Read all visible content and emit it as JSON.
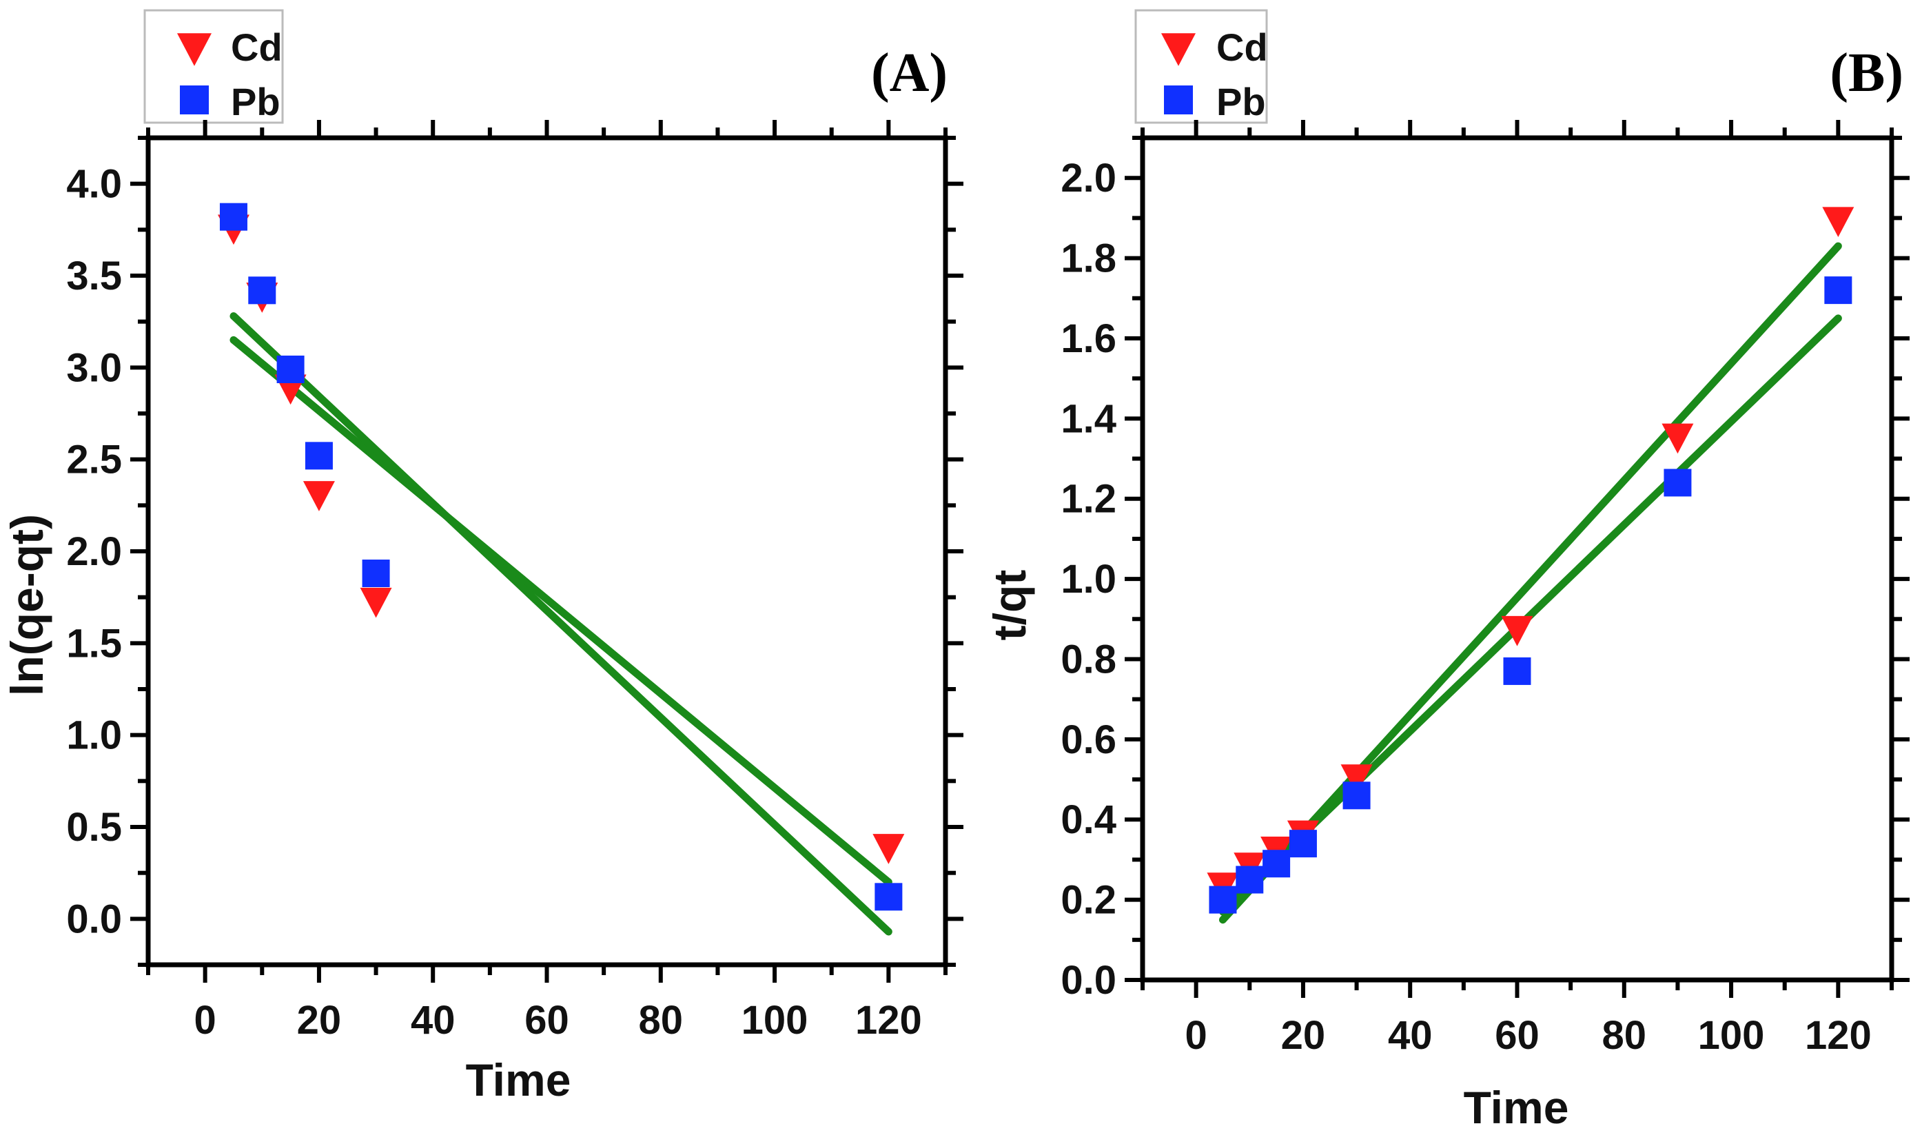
{
  "chart_data": [
    {
      "type": "scatter",
      "panel_label": "(A)",
      "xlabel": "Time",
      "ylabel": "ln(qe-qt)",
      "xlim": [
        -10,
        130
      ],
      "ylim": [
        -0.25,
        4.25
      ],
      "xticks": [
        0,
        20,
        40,
        60,
        80,
        100,
        120
      ],
      "yticks": [
        0.0,
        0.5,
        1.0,
        1.5,
        2.0,
        2.5,
        3.0,
        3.5,
        4.0
      ],
      "xtick_labels": [
        "0",
        "20",
        "40",
        "60",
        "80",
        "100",
        "120"
      ],
      "ytick_labels": [
        "0.0",
        "0.5",
        "1.0",
        "1.5",
        "2.0",
        "2.5",
        "3.0",
        "3.5",
        "4.0"
      ],
      "legend": {
        "position": "top-left-outside",
        "entries": [
          "Cd",
          "Pb"
        ]
      },
      "series": [
        {
          "name": "Cd",
          "marker": "triangle-down",
          "color": "#ff1a1a",
          "x": [
            5,
            10,
            15,
            20,
            30,
            120
          ],
          "y": [
            3.75,
            3.38,
            2.88,
            2.3,
            1.72,
            0.38
          ]
        },
        {
          "name": "Pb",
          "marker": "square",
          "color": "#1030ff",
          "x": [
            5,
            10,
            15,
            20,
            30,
            120
          ],
          "y": [
            3.82,
            3.42,
            2.99,
            2.52,
            1.88,
            0.12
          ]
        }
      ],
      "fit_lines": [
        {
          "series": "Cd",
          "color": "#1a8a1a",
          "x": [
            5,
            120
          ],
          "y": [
            3.15,
            0.2
          ]
        },
        {
          "series": "Pb",
          "color": "#1a8a1a",
          "x": [
            5,
            120
          ],
          "y": [
            3.28,
            -0.07
          ]
        }
      ]
    },
    {
      "type": "scatter",
      "panel_label": "(B)",
      "xlabel": "Time",
      "ylabel": "t/qt",
      "xlim": [
        -10,
        130
      ],
      "ylim": [
        0.0,
        2.1
      ],
      "xticks": [
        0,
        20,
        40,
        60,
        80,
        100,
        120
      ],
      "yticks": [
        0.0,
        0.2,
        0.4,
        0.6,
        0.8,
        1.0,
        1.2,
        1.4,
        1.6,
        1.8,
        2.0
      ],
      "xtick_labels": [
        "0",
        "20",
        "40",
        "60",
        "80",
        "100",
        "120"
      ],
      "ytick_labels": [
        "0.0",
        "0.2",
        "0.4",
        "0.6",
        "0.8",
        "1.0",
        "1.2",
        "1.4",
        "1.6",
        "1.8",
        "2.0"
      ],
      "legend": {
        "position": "top-left-outside",
        "entries": [
          "Cd",
          "Pb"
        ]
      },
      "series": [
        {
          "name": "Cd",
          "marker": "triangle-down",
          "color": "#ff1a1a",
          "x": [
            5,
            10,
            15,
            20,
            30,
            60,
            90,
            120
          ],
          "y": [
            0.23,
            0.28,
            0.32,
            0.36,
            0.5,
            0.87,
            1.35,
            1.89
          ]
        },
        {
          "name": "Pb",
          "marker": "square",
          "color": "#1030ff",
          "x": [
            5,
            10,
            15,
            20,
            30,
            60,
            90,
            120
          ],
          "y": [
            0.2,
            0.25,
            0.29,
            0.34,
            0.46,
            0.77,
            1.24,
            1.72
          ]
        }
      ],
      "fit_lines": [
        {
          "series": "Cd",
          "color": "#1a8a1a",
          "x": [
            5,
            120
          ],
          "y": [
            0.15,
            1.83
          ]
        },
        {
          "series": "Pb",
          "color": "#1a8a1a",
          "x": [
            5,
            120
          ],
          "y": [
            0.17,
            1.65
          ]
        }
      ]
    }
  ]
}
